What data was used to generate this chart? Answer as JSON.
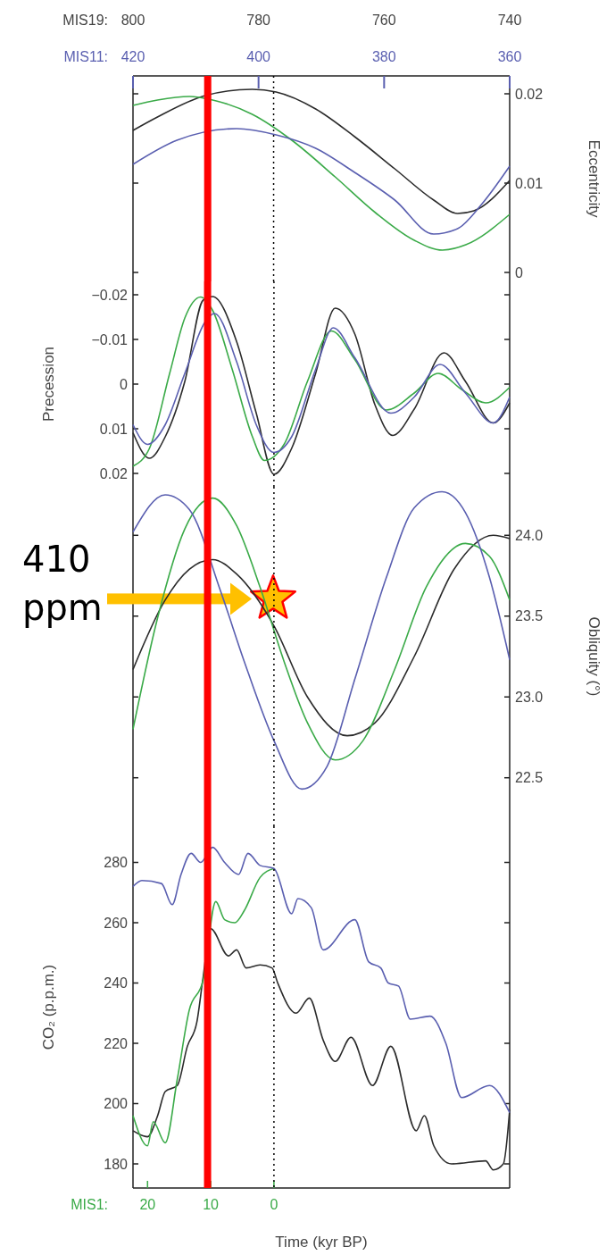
{
  "chart_data": [
    {
      "type": "line",
      "xlim": [
        800,
        740
      ],
      "xticks": [
        800,
        780,
        760,
        740
      ],
      "xlabel": "MIS19:",
      "x2lim": [
        420,
        360
      ],
      "x2ticks": [
        420,
        400,
        380,
        360
      ],
      "x2label": "MIS11:",
      "y2label": "Eccentricity",
      "y2lim": [
        -0.001,
        0.022
      ],
      "y2ticks": [
        0,
        0.01,
        0.02
      ],
      "ref_lines": [
        {
          "axis": "x",
          "value": 788.1,
          "color": "#ff0000"
        },
        {
          "axis": "x",
          "value": 777.6,
          "color": "#000000",
          "line_style": "dotted"
        }
      ],
      "series": [
        {
          "color": "#2b2b2b",
          "axis": "y2",
          "x": [
            800,
            796.1,
            788.5,
            781.0,
            777.2,
            770.9,
            764.7,
            758.3,
            752.1,
            748.3,
            745.7,
            740
          ],
          "values": [
            0.0159,
            0.0174,
            0.0198,
            0.0205,
            0.0202,
            0.0183,
            0.0152,
            0.0116,
            0.0081,
            0.0066,
            0.0069,
            0.0103
          ]
        },
        {
          "color": "#3aaa48",
          "axis": "y2",
          "x": [
            800,
            796.1,
            791.0,
            787.3,
            781.0,
            774.7,
            767.8,
            761.4,
            755.2,
            750.7,
            747.0,
            740
          ],
          "values": [
            0.0187,
            0.0193,
            0.0197,
            0.0193,
            0.0177,
            0.0148,
            0.0107,
            0.0067,
            0.0036,
            0.0025,
            0.0031,
            0.0065
          ]
        },
        {
          "color": "#5a5fb0",
          "axis": "y2",
          "x": [
            800,
            793.0,
            783.5,
            777.2,
            770.9,
            764.7,
            758.3,
            752.1,
            748.3,
            744.5,
            740
          ],
          "values": [
            0.0121,
            0.0148,
            0.0161,
            0.0154,
            0.0139,
            0.0112,
            0.0081,
            0.0043,
            0.0049,
            0.0076,
            0.0119
          ]
        }
      ]
    },
    {
      "type": "line",
      "xlim": [
        22.3,
        -37.3
      ],
      "tick_labels": "y",
      "ylabel": "Precession",
      "ylim": [
        0.023,
        -0.023
      ],
      "yticks": [
        {
          "value": -0.02,
          "label": "−0.02"
        },
        {
          "value": -0.01,
          "label": "−0.01"
        },
        0,
        0.01,
        0.02
      ],
      "ref_lines": [
        {
          "axis": "x",
          "value": 10.5,
          "color": "#ff0000"
        },
        {
          "axis": "x",
          "value": 0,
          "color": "#000000",
          "line_style": "dotted"
        }
      ],
      "series": [
        {
          "color": "#2b2b2b",
          "x": [
            22.3,
            19.7,
            17.2,
            14.1,
            11.2,
            9.7,
            5.9,
            2.8,
            0,
            -2.8,
            -6.6,
            -9.7,
            -12.8,
            -16.0,
            -18.8,
            -22.2,
            -26.9,
            -30.3,
            -34.7,
            -37.3
          ],
          "values": [
            0.0109,
            0.0166,
            0.0118,
            -0.0006,
            -0.0188,
            -0.0196,
            -0.0095,
            0.0065,
            0.0202,
            0.0144,
            -0.0024,
            -0.017,
            -0.0112,
            0.0047,
            0.0115,
            0.0056,
            -0.007,
            -0.0006,
            0.0087,
            0.0042
          ]
        },
        {
          "color": "#3aaa48",
          "x": [
            22.3,
            19.7,
            16.5,
            14.1,
            11.6,
            9.7,
            6.6,
            3.4,
            1.5,
            -1.6,
            -5.3,
            -9.1,
            -12.8,
            -17.8,
            -22.2,
            -26.0,
            -29.7,
            -33.5,
            -37.3
          ],
          "values": [
            0.0184,
            0.0144,
            -0.0024,
            -0.0148,
            -0.0195,
            -0.0165,
            -0.0033,
            0.0118,
            0.0171,
            0.0135,
            -0.0006,
            -0.0119,
            -0.0055,
            0.0058,
            0.002,
            -0.0024,
            0.0012,
            0.0042,
            0.0007
          ]
        },
        {
          "color": "#5a5fb0",
          "x": [
            22.3,
            20.0,
            17.2,
            14.1,
            10.9,
            9.4,
            5.9,
            2.8,
            0,
            -2.8,
            -6.6,
            -9.4,
            -12.8,
            -18.5,
            -22.2,
            -26.3,
            -30.3,
            -34.7,
            -37.3
          ],
          "values": [
            0.0091,
            0.0135,
            0.0091,
            -0.0024,
            -0.0139,
            -0.0158,
            -0.005,
            0.0091,
            0.0153,
            0.0118,
            -0.0033,
            -0.0126,
            -0.0059,
            0.0065,
            0.0029,
            -0.0044,
            0.002,
            0.0087,
            0.0029
          ]
        }
      ]
    },
    {
      "type": "line",
      "xlim": [
        22.3,
        -37.3
      ],
      "tick_labels": "y",
      "y2label": "Obliquity (°)",
      "y2lim": [
        22.2,
        24.3
      ],
      "y2ticks": [
        {
          "value": 24,
          "label": "24.0"
        },
        23.5,
        {
          "value": 23,
          "label": "23.0"
        },
        22.5
      ],
      "ref_lines": [
        {
          "axis": "x",
          "value": 10.5,
          "color": "#ff0000"
        },
        {
          "axis": "x",
          "value": 0,
          "color": "#000000",
          "line_style": "dotted"
        }
      ],
      "annotations": [
        "410 ppm"
      ],
      "series": [
        {
          "color": "#2b2b2b",
          "axis": "y2",
          "x": [
            22.3,
            17.2,
            13.4,
            9.7,
            5.9,
            0,
            -5.3,
            -11.6,
            -16.0,
            -22.2,
            -28.5,
            -34.7,
            -37.3
          ],
          "values": [
            23.17,
            23.6,
            23.79,
            23.85,
            23.76,
            23.44,
            23.0,
            22.76,
            22.84,
            23.25,
            23.79,
            24.0,
            23.98
          ]
        },
        {
          "color": "#3aaa48",
          "axis": "y2",
          "x": [
            22.3,
            18.4,
            14.1,
            9.7,
            5.9,
            2.2,
            -1.6,
            -5.3,
            -9.7,
            -14.1,
            -19.1,
            -24.1,
            -30.3,
            -34.1,
            -37.3
          ],
          "values": [
            22.8,
            23.49,
            24.04,
            24.23,
            24.06,
            23.68,
            23.22,
            22.84,
            22.61,
            22.73,
            23.17,
            23.68,
            23.95,
            23.87,
            23.6
          ]
        },
        {
          "color": "#5a5fb0",
          "axis": "y2",
          "x": [
            22.3,
            17.2,
            13.4,
            8.4,
            4.7,
            0,
            -4.4,
            -8.4,
            -12.8,
            -17.8,
            -22.2,
            -26.6,
            -30.3,
            -34.1,
            -37.3
          ],
          "values": [
            24.02,
            24.25,
            24.16,
            23.65,
            23.22,
            22.73,
            22.43,
            22.57,
            23.11,
            23.74,
            24.17,
            24.27,
            24.14,
            23.74,
            23.23
          ]
        }
      ]
    },
    {
      "type": "line",
      "xlim": [
        22.3,
        -37.3
      ],
      "xticks": [
        20,
        10,
        0
      ],
      "xlabel": "Time (kyr BP)",
      "ylabel": "CO₂ (p.p.m.)",
      "ylim": [
        172,
        292
      ],
      "yticks": [
        180,
        200,
        220,
        240,
        260,
        280
      ],
      "annotations": [
        "MIS1:"
      ],
      "ref_lines": [
        {
          "axis": "x",
          "value": 10.5,
          "color": "#ff0000"
        },
        {
          "axis": "x",
          "value": 0,
          "color": "#000000",
          "line_style": "dotted"
        }
      ],
      "series": [
        {
          "color": "#2b2b2b",
          "x": [
            22.3,
            20.0,
            18.4,
            17.2,
            15.3,
            13.7,
            12.2,
            11.2,
            10.0,
            7.2,
            5.9,
            4.4,
            2.2,
            0.3,
            -0.6,
            -3.5,
            -5.6,
            -7.8,
            -9.7,
            -12.2,
            -15.6,
            -18.5,
            -22.5,
            -23.8,
            -25.3,
            -28.1,
            -33.5,
            -34.7,
            -36.3,
            -37.3
          ],
          "values": [
            191,
            189,
            196,
            204,
            206,
            219,
            227,
            242,
            258,
            249,
            251,
            245,
            246,
            245,
            240,
            230,
            235,
            221,
            214,
            222,
            206,
            219,
            191,
            196,
            186,
            180,
            181,
            178,
            180,
            198
          ]
        },
        {
          "color": "#3aaa48",
          "x": [
            22.3,
            20.0,
            19.1,
            17.2,
            15.3,
            13.4,
            11.2,
            10.6,
            9.2,
            7.8,
            6.2,
            4.7,
            2.2,
            0
          ],
          "values": [
            196,
            186,
            194,
            187,
            208,
            231,
            241,
            null,
            267,
            261,
            260,
            264,
            275,
            278
          ]
        },
        {
          "color": "#5a5fb0",
          "x": [
            22.3,
            20.9,
            17.8,
            16.1,
            14.7,
            13.1,
            11.6,
            9.7,
            7.8,
            5.6,
            4.1,
            2.2,
            0,
            -2.8,
            -3.8,
            -5.9,
            -7.8,
            -12.8,
            -15.0,
            -16.9,
            -18.1,
            -19.7,
            -21.6,
            -24.7,
            -27.2,
            -29.7,
            -34.1,
            -37.3
          ],
          "values": [
            272,
            274,
            273,
            266,
            276,
            283,
            280,
            285,
            280,
            276,
            283,
            279,
            278,
            263,
            268,
            265,
            251,
            261,
            247,
            245,
            240,
            239,
            228,
            229,
            220,
            202,
            206,
            197
          ]
        }
      ]
    }
  ]
}
